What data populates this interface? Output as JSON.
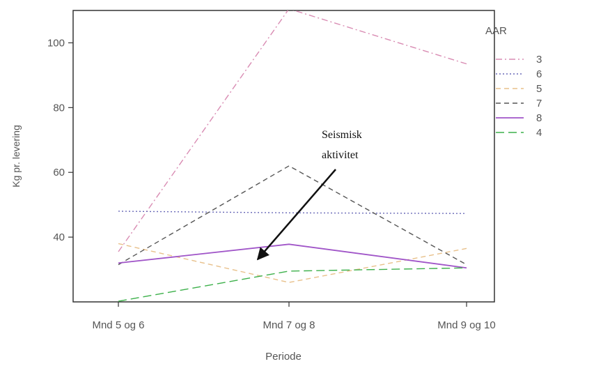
{
  "chart_data": {
    "type": "line",
    "title": "",
    "xlabel": "Periode",
    "ylabel": "Kg pr. levering",
    "categories": [
      "Mnd 5 og 6",
      "Mnd 7 og 8",
      "Mnd 9 og 10"
    ],
    "ylim": [
      20,
      110
    ],
    "yticks": [
      40,
      60,
      80,
      100
    ],
    "grid": false,
    "legend": {
      "title": "AAR",
      "position": "top-right"
    },
    "series": [
      {
        "name": "3",
        "values": [
          35.5,
          110.5,
          93.5
        ],
        "color": "#d98cb3",
        "dash": "dashdot"
      },
      {
        "name": "6",
        "values": [
          48,
          47.5,
          47.3
        ],
        "color": "#6a6ab8",
        "dash": "dotted"
      },
      {
        "name": "5",
        "values": [
          38,
          26,
          36.5
        ],
        "color": "#e8c08a",
        "dash": "dashed"
      },
      {
        "name": "7",
        "values": [
          31.5,
          62,
          31.5
        ],
        "color": "#555555",
        "dash": "dashed"
      },
      {
        "name": "8",
        "values": [
          32,
          37.8,
          30.5
        ],
        "color": "#a055c8",
        "dash": "solid"
      },
      {
        "name": "4",
        "values": [
          20.2,
          29.5,
          30.5
        ],
        "color": "#3cb04a",
        "dash": "longdash"
      }
    ],
    "annotation": {
      "lines": [
        "Seismisk",
        "aktivitet"
      ],
      "points_to": {
        "category": "Mnd 7 og 8",
        "y": 35
      }
    }
  }
}
